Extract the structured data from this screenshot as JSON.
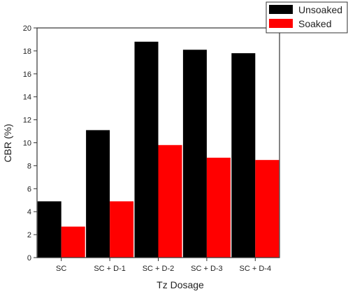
{
  "chart_data": {
    "type": "bar",
    "title": "",
    "xlabel": "Tz Dosage",
    "ylabel": "CBR (%)",
    "ylim": [
      0,
      20
    ],
    "yticks": [
      0,
      2,
      4,
      6,
      8,
      10,
      12,
      14,
      16,
      18,
      20
    ],
    "categories": [
      "SC",
      "SC + D-1",
      "SC + D-2",
      "SC + D-3",
      "SC + D-4"
    ],
    "series": [
      {
        "name": "Unsoaked",
        "values": [
          4.9,
          11.1,
          18.8,
          18.1,
          17.8
        ],
        "color": "#000000"
      },
      {
        "name": "Soaked",
        "values": [
          2.7,
          4.9,
          9.8,
          8.7,
          8.5
        ],
        "color": "#ff0000"
      }
    ],
    "grid": false,
    "legend_position": "top-right"
  }
}
